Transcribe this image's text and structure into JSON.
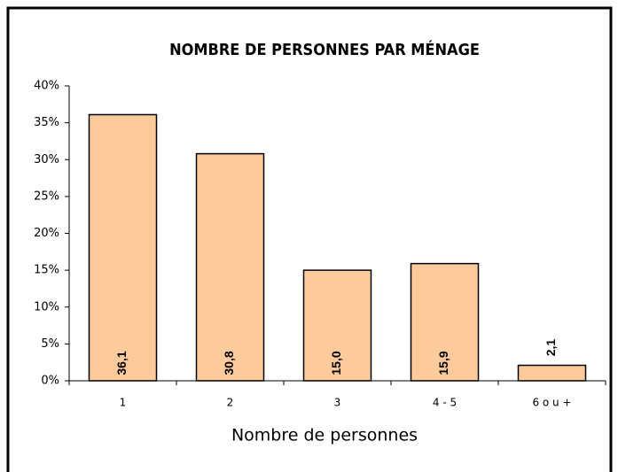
{
  "chart_data": {
    "type": "bar",
    "title": "NOMBRE DE PERSONNES PAR MÉNAGE",
    "x_label": "Nombre de personnes",
    "categories": [
      "1",
      "2",
      "3",
      "4 - 5",
      "6 o u +"
    ],
    "values": [
      36.1,
      30.8,
      15.0,
      15.9,
      2.1
    ],
    "value_labels": [
      "36,1",
      "30,8",
      "15,0",
      "15,9",
      "2,1"
    ],
    "color": "#fdca9b",
    "ylim": [
      0,
      40
    ],
    "yticks": [
      {
        "value": 0,
        "label": "0%"
      },
      {
        "value": 5,
        "label": "5%"
      },
      {
        "value": 10,
        "label": "10%"
      },
      {
        "value": 15,
        "label": "15%"
      },
      {
        "value": 20,
        "label": "20%"
      },
      {
        "value": 25,
        "label": "25%"
      },
      {
        "value": 30,
        "label": "30%"
      },
      {
        "value": 35,
        "label": "35%"
      },
      {
        "value": 40,
        "label": "40%"
      }
    ],
    "grid": false
  }
}
